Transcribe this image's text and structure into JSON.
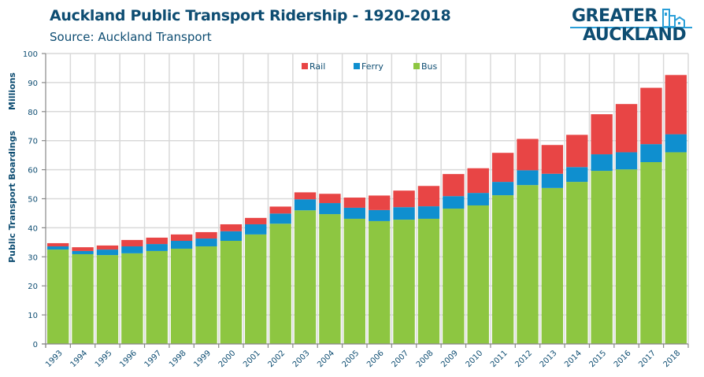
{
  "header": {
    "title": "Auckland Public Transport Ridership - 1920-2018",
    "subtitle": "Source: Auckland Transport"
  },
  "logo": {
    "line1": "GREATER",
    "line2": "AUCKLAND"
  },
  "colors": {
    "rail": "#e84545",
    "ferry": "#0f8fcf",
    "bus": "#8dc641",
    "text": "#0e4d72",
    "grid": "#d9d9d9"
  },
  "chart_data": {
    "type": "bar",
    "stacked": true,
    "title": "Auckland Public Transport Ridership - 1920-2018",
    "subtitle": "Source: Auckland Transport",
    "xlabel": "",
    "ylabel": "Public Transport Boardings",
    "yunit_label": "Millions",
    "ylim": [
      0,
      100
    ],
    "yticks": [
      0,
      10,
      20,
      30,
      40,
      50,
      60,
      70,
      80,
      90,
      100
    ],
    "grid": true,
    "legend_position": "top-center",
    "categories": [
      "1993",
      "1994",
      "1995",
      "1996",
      "1997",
      "1998",
      "1999",
      "2000",
      "2001",
      "2002",
      "2003",
      "2004",
      "2005",
      "2006",
      "2007",
      "2008",
      "2009",
      "2010",
      "2011",
      "2012",
      "2013",
      "2014",
      "2015",
      "2016",
      "2017",
      "2018"
    ],
    "series": [
      {
        "name": "Bus",
        "color": "#8dc641",
        "values": [
          32.5,
          30.9,
          30.6,
          31.2,
          32.0,
          32.8,
          33.6,
          35.5,
          37.7,
          41.4,
          46.0,
          44.7,
          43.1,
          42.3,
          42.8,
          43.1,
          46.6,
          47.7,
          51.2,
          54.7,
          53.7,
          55.8,
          59.6,
          60.1,
          62.6,
          66.0
        ]
      },
      {
        "name": "Ferry",
        "color": "#0f8fcf",
        "values": [
          1.1,
          1.1,
          1.9,
          2.4,
          2.4,
          2.7,
          2.7,
          3.3,
          3.5,
          3.5,
          3.8,
          3.8,
          3.8,
          3.8,
          4.3,
          4.3,
          4.3,
          4.3,
          4.6,
          5.1,
          4.9,
          5.1,
          5.7,
          5.9,
          6.2,
          6.2
        ]
      },
      {
        "name": "Rail",
        "color": "#e84545",
        "values": [
          1.1,
          1.3,
          1.4,
          2.2,
          2.2,
          2.2,
          2.2,
          2.4,
          2.2,
          2.4,
          2.4,
          3.2,
          3.5,
          5.0,
          5.7,
          7.0,
          7.6,
          8.5,
          10.0,
          10.8,
          9.9,
          11.1,
          13.8,
          16.6,
          19.4,
          20.4
        ]
      }
    ]
  }
}
